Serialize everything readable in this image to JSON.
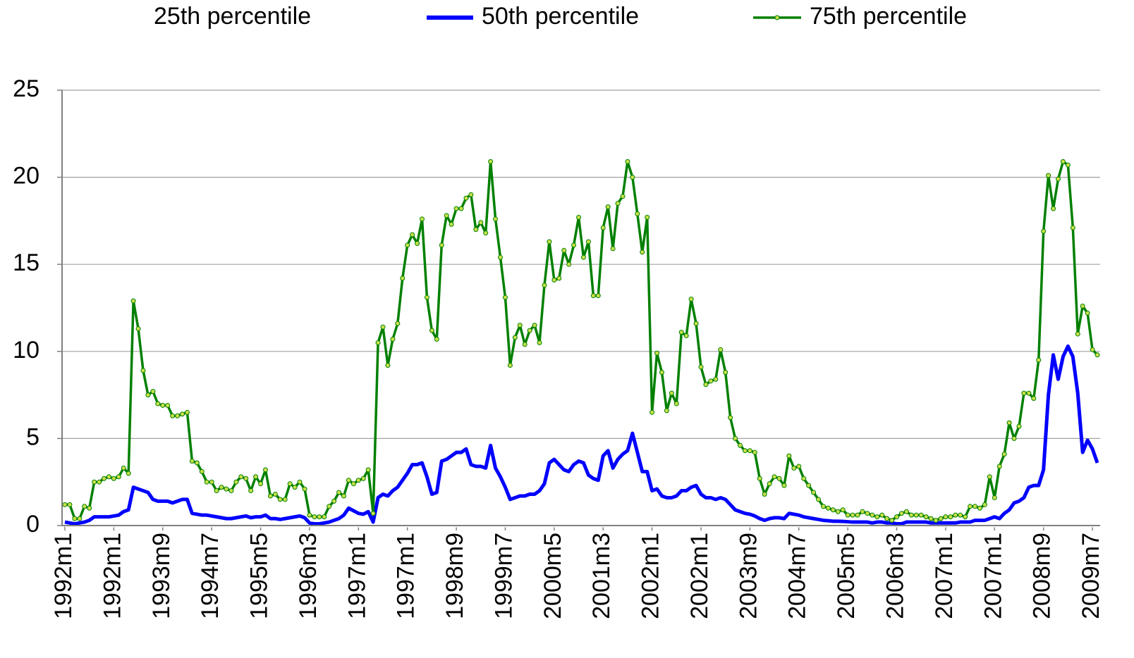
{
  "chart_data": {
    "type": "line",
    "categories": [
      "1992m1",
      null,
      null,
      null,
      null,
      null,
      null,
      null,
      null,
      null,
      "1992m1",
      null,
      null,
      null,
      null,
      null,
      null,
      null,
      null,
      null,
      "1993m9",
      null,
      null,
      null,
      null,
      null,
      null,
      null,
      null,
      null,
      "1994m7",
      null,
      null,
      null,
      null,
      null,
      null,
      null,
      null,
      null,
      "1995m5",
      null,
      null,
      null,
      null,
      null,
      null,
      null,
      null,
      null,
      "1996m3",
      null,
      null,
      null,
      null,
      null,
      null,
      null,
      null,
      null,
      "1997m1",
      null,
      null,
      null,
      null,
      null,
      null,
      null,
      null,
      null,
      "1997m1",
      null,
      null,
      null,
      null,
      null,
      null,
      null,
      null,
      null,
      "1998m9",
      null,
      null,
      null,
      null,
      null,
      null,
      null,
      null,
      null,
      "1999m7",
      null,
      null,
      null,
      null,
      null,
      null,
      null,
      null,
      null,
      "2000m5",
      null,
      null,
      null,
      null,
      null,
      null,
      null,
      null,
      null,
      "2001m3",
      null,
      null,
      null,
      null,
      null,
      null,
      null,
      null,
      null,
      "2002m1",
      null,
      null,
      null,
      null,
      null,
      null,
      null,
      null,
      null,
      "2002m1",
      null,
      null,
      null,
      null,
      null,
      null,
      null,
      null,
      null,
      "2003m9",
      null,
      null,
      null,
      null,
      null,
      null,
      null,
      null,
      null,
      "2004m7",
      null,
      null,
      null,
      null,
      null,
      null,
      null,
      null,
      null,
      "2005m5",
      null,
      null,
      null,
      null,
      null,
      null,
      null,
      null,
      null,
      "2006m3",
      null,
      null,
      null,
      null,
      null,
      null,
      null,
      null,
      null,
      "2007m1",
      null,
      null,
      null,
      null,
      null,
      null,
      null,
      null,
      null,
      "2007m1",
      null,
      null,
      null,
      null,
      null,
      null,
      null,
      null,
      null,
      "2008m9",
      null,
      null,
      null,
      null,
      null,
      null,
      null,
      null,
      null,
      "2009m7",
      null
    ],
    "series": [
      {
        "name": "25th percentile",
        "color": "#ffffff",
        "values": [
          0,
          0,
          0,
          0,
          0,
          0,
          0,
          0,
          0,
          0,
          0,
          0,
          0,
          0,
          0,
          0,
          0,
          0,
          0,
          0,
          0,
          0,
          0,
          0,
          0,
          0,
          0,
          0,
          0,
          0,
          0,
          0,
          0,
          0,
          0,
          0,
          0,
          0,
          0,
          0,
          0,
          0,
          0,
          0,
          0,
          0,
          0,
          0,
          0,
          0,
          0,
          0,
          0,
          0,
          0,
          0,
          0,
          0,
          0,
          0,
          0,
          0,
          0,
          0,
          0,
          0,
          0,
          0,
          0,
          0,
          0,
          0,
          0,
          0,
          0,
          0,
          0,
          0,
          0,
          0,
          0,
          0,
          0,
          0,
          0,
          0,
          0,
          0,
          0,
          0,
          0,
          0,
          0,
          0,
          0,
          0,
          0,
          0,
          0,
          0,
          0,
          0,
          0,
          0,
          0,
          0,
          0,
          0,
          0,
          0,
          0,
          0,
          0,
          0,
          0,
          0,
          0,
          0,
          0,
          0,
          0,
          0,
          0,
          0,
          0,
          0,
          0,
          0,
          0,
          0,
          0,
          0,
          0,
          0,
          0,
          0,
          0,
          0,
          0,
          0,
          0,
          0,
          0,
          0,
          0,
          0,
          0,
          0,
          0,
          0,
          0,
          0,
          0,
          0,
          0,
          0,
          0,
          0,
          0,
          0,
          0,
          0,
          0,
          0,
          0,
          0,
          0,
          0,
          0,
          0,
          0,
          0,
          0,
          0,
          0,
          0,
          0,
          0,
          0,
          0,
          0,
          0,
          0,
          0,
          0,
          0,
          0,
          0,
          0,
          0,
          0,
          0,
          0,
          0,
          0,
          0,
          0,
          0,
          0,
          0,
          0,
          0,
          0,
          0,
          0,
          0,
          0,
          0,
          0,
          0,
          0,
          0
        ]
      },
      {
        "name": "50th percentile",
        "color": "#0000ff",
        "values": [
          0.2,
          0.15,
          0.1,
          0.15,
          0.2,
          0.3,
          0.5,
          0.5,
          0.5,
          0.5,
          0.55,
          0.6,
          0.8,
          0.9,
          2.2,
          2.1,
          2.0,
          1.9,
          1.5,
          1.4,
          1.4,
          1.4,
          1.3,
          1.4,
          1.5,
          1.5,
          0.7,
          0.65,
          0.6,
          0.6,
          0.55,
          0.5,
          0.45,
          0.4,
          0.4,
          0.45,
          0.5,
          0.55,
          0.45,
          0.5,
          0.5,
          0.6,
          0.4,
          0.4,
          0.35,
          0.4,
          0.45,
          0.5,
          0.55,
          0.45,
          0.15,
          0.1,
          0.1,
          0.15,
          0.2,
          0.3,
          0.4,
          0.6,
          1.0,
          0.85,
          0.7,
          0.65,
          0.8,
          0.2,
          1.6,
          1.8,
          1.7,
          2.0,
          2.2,
          2.6,
          3.0,
          3.5,
          3.5,
          3.6,
          2.8,
          1.8,
          1.9,
          3.7,
          3.8,
          4.0,
          4.2,
          4.2,
          4.4,
          3.5,
          3.4,
          3.4,
          3.3,
          4.6,
          3.3,
          2.8,
          2.2,
          1.5,
          1.6,
          1.7,
          1.7,
          1.8,
          1.8,
          2.0,
          2.4,
          3.6,
          3.8,
          3.5,
          3.2,
          3.1,
          3.5,
          3.7,
          3.6,
          2.9,
          2.7,
          2.6,
          4.0,
          4.3,
          3.3,
          3.8,
          4.1,
          4.3,
          5.3,
          4.2,
          3.1,
          3.1,
          2.0,
          2.1,
          1.7,
          1.6,
          1.6,
          1.7,
          2.0,
          2.0,
          2.2,
          2.3,
          1.8,
          1.6,
          1.6,
          1.5,
          1.6,
          1.5,
          1.2,
          0.9,
          0.8,
          0.7,
          0.65,
          0.55,
          0.4,
          0.3,
          0.4,
          0.45,
          0.45,
          0.4,
          0.7,
          0.65,
          0.6,
          0.5,
          0.45,
          0.4,
          0.35,
          0.3,
          0.28,
          0.25,
          0.25,
          0.24,
          0.22,
          0.2,
          0.2,
          0.2,
          0.2,
          0.15,
          0.2,
          0.2,
          0.15,
          0.15,
          0.1,
          0.1,
          0.2,
          0.2,
          0.2,
          0.2,
          0.2,
          0.15,
          0.15,
          0.15,
          0.15,
          0.15,
          0.15,
          0.2,
          0.2,
          0.2,
          0.3,
          0.3,
          0.3,
          0.4,
          0.5,
          0.4,
          0.7,
          0.9,
          1.3,
          1.4,
          1.6,
          2.2,
          2.3,
          2.3,
          3.2,
          7.5,
          9.8,
          8.4,
          9.7,
          10.3,
          9.7,
          7.6,
          4.2,
          4.9,
          4.4,
          3.6
        ]
      },
      {
        "name": "75th percentile",
        "color": "#008000",
        "marker": true,
        "marker_color": "#c8e04a",
        "values": [
          1.2,
          1.2,
          0.4,
          0.4,
          1.1,
          1.0,
          2.5,
          2.5,
          2.7,
          2.8,
          2.7,
          2.8,
          3.3,
          3.0,
          12.9,
          11.3,
          8.9,
          7.5,
          7.7,
          7.0,
          6.9,
          6.9,
          6.3,
          6.3,
          6.4,
          6.5,
          3.7,
          3.6,
          3.1,
          2.5,
          2.5,
          2.0,
          2.2,
          2.1,
          2.0,
          2.5,
          2.8,
          2.7,
          2.0,
          2.8,
          2.4,
          3.2,
          1.7,
          1.8,
          1.5,
          1.5,
          2.4,
          2.2,
          2.5,
          2.1,
          0.6,
          0.5,
          0.5,
          0.5,
          1.1,
          1.4,
          1.9,
          1.7,
          2.6,
          2.4,
          2.6,
          2.7,
          3.2,
          0.7,
          10.5,
          11.4,
          9.2,
          10.7,
          11.6,
          14.2,
          16.1,
          16.7,
          16.2,
          17.6,
          13.1,
          11.2,
          10.7,
          16.1,
          17.8,
          17.3,
          18.2,
          18.2,
          18.8,
          19.0,
          17.0,
          17.4,
          16.8,
          20.9,
          17.6,
          15.4,
          13.1,
          9.2,
          10.8,
          11.5,
          10.4,
          11.2,
          11.5,
          10.5,
          13.8,
          16.3,
          14.1,
          14.2,
          15.8,
          15.0,
          16.1,
          17.7,
          15.4,
          16.3,
          13.2,
          13.2,
          17.1,
          18.3,
          15.9,
          18.5,
          18.9,
          20.9,
          20.0,
          17.9,
          15.7,
          17.7,
          6.5,
          9.9,
          8.8,
          6.6,
          7.6,
          7.0,
          11.1,
          10.9,
          13.0,
          11.6,
          9.1,
          8.1,
          8.3,
          8.4,
          10.1,
          8.8,
          6.2,
          5.0,
          4.6,
          4.3,
          4.3,
          4.2,
          2.7,
          1.8,
          2.4,
          2.8,
          2.7,
          2.3,
          4.0,
          3.3,
          3.4,
          2.7,
          2.3,
          1.9,
          1.5,
          1.1,
          1.0,
          0.9,
          0.8,
          0.9,
          0.6,
          0.6,
          0.6,
          0.8,
          0.7,
          0.6,
          0.5,
          0.6,
          0.4,
          0.3,
          0.5,
          0.7,
          0.8,
          0.6,
          0.6,
          0.6,
          0.5,
          0.4,
          0.3,
          0.4,
          0.5,
          0.5,
          0.6,
          0.6,
          0.5,
          1.1,
          1.1,
          1.0,
          1.2,
          2.8,
          1.6,
          3.4,
          4.1,
          5.9,
          5.0,
          5.7,
          7.6,
          7.6,
          7.3,
          9.5,
          16.9,
          20.1,
          18.2,
          19.9,
          20.9,
          20.7,
          17.1,
          11.0,
          12.6,
          12.2,
          10.1,
          9.8
        ]
      }
    ],
    "ylim": [
      0,
      25
    ],
    "yticks": [
      0,
      5,
      10,
      15,
      20,
      25
    ],
    "grid": true
  }
}
